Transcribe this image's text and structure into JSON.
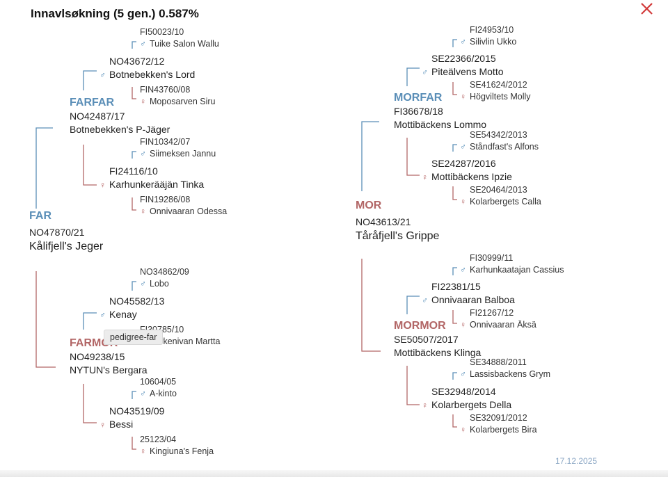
{
  "title": "Innavlsøkning (5 gen.) 0.587%",
  "date": "17.12.2025",
  "tooltip": "pedigree-far",
  "colors": {
    "male": "#5a8eb7",
    "female": "#b26666"
  },
  "far": {
    "role": "FAR",
    "reg": "NO47870/21",
    "name": "Kålifjell's Jeger",
    "farfar": {
      "role": "FARFAR",
      "reg": "NO42487/17",
      "name": "Botnebekken's P-Jäger",
      "sire": {
        "reg": "NO43672/12",
        "name": "Botnebekken's Lord",
        "sire": {
          "reg": "FI50023/10",
          "name": "Tuike Salon Wallu"
        },
        "dam": {
          "reg": "FIN43760/08",
          "name": "Moposarven Siru"
        }
      },
      "dam": {
        "reg": "FI24116/10",
        "name": "Karhunkerääjän Tinka",
        "sire": {
          "reg": "FIN10342/07",
          "name": "Siimeksen Jannu"
        },
        "dam": {
          "reg": "FIN19286/08",
          "name": "Onnivaaran Odessa"
        }
      }
    },
    "farmor": {
      "role": "FARMOR",
      "reg": "NO49238/15",
      "name": "NYTUN's Bergara",
      "sire": {
        "reg": "NO45582/13",
        "name": "Kenay",
        "sire": {
          "reg": "NO34862/09",
          "name": "Lobo"
        },
        "dam": {
          "reg": "FI30785/10",
          "name": "Korkenivan Martta"
        }
      },
      "dam": {
        "reg": "NO43519/09",
        "name": "Bessi",
        "sire": {
          "reg": "10604/05",
          "name": "A-kinto"
        },
        "dam": {
          "reg": "25123/04",
          "name": "Kingiuna's Fenja"
        }
      }
    }
  },
  "mor": {
    "role": "MOR",
    "reg": "NO43613/21",
    "name": "Tåråfjell's Grippe",
    "morfar": {
      "role": "MORFAR",
      "reg": "FI36678/18",
      "name": "Mottibäckens Lommo",
      "sire": {
        "reg": "SE22366/2015",
        "name": "Piteälvens Motto",
        "sire": {
          "reg": "FI24953/10",
          "name": "Silivlin Ukko"
        },
        "dam": {
          "reg": "SE41624/2012",
          "name": "Högviltets Molly"
        }
      },
      "dam": {
        "reg": "SE24287/2016",
        "name": "Mottibäckens Ipzie",
        "sire": {
          "reg": "SE54342/2013",
          "name": "Ståndfast's Alfons"
        },
        "dam": {
          "reg": "SE20464/2013",
          "name": "Kolarbergets Calla"
        }
      }
    },
    "mormor": {
      "role": "MORMOR",
      "reg": "SE50507/2017",
      "name": "Mottibäckens Klinga",
      "sire": {
        "reg": "FI22381/15",
        "name": "Onnivaaran Balboa",
        "sire": {
          "reg": "FI30999/11",
          "name": "Karhunkaatajan Cassius"
        },
        "dam": {
          "reg": "FI21267/12",
          "name": "Onnivaaran Äksä"
        }
      },
      "dam": {
        "reg": "SE32948/2014",
        "name": "Kolarbergets Della",
        "sire": {
          "reg": "SE34888/2011",
          "name": "Lassisbackens Grym"
        },
        "dam": {
          "reg": "SE32091/2012",
          "name": "Kolarbergets Bira"
        }
      }
    }
  }
}
